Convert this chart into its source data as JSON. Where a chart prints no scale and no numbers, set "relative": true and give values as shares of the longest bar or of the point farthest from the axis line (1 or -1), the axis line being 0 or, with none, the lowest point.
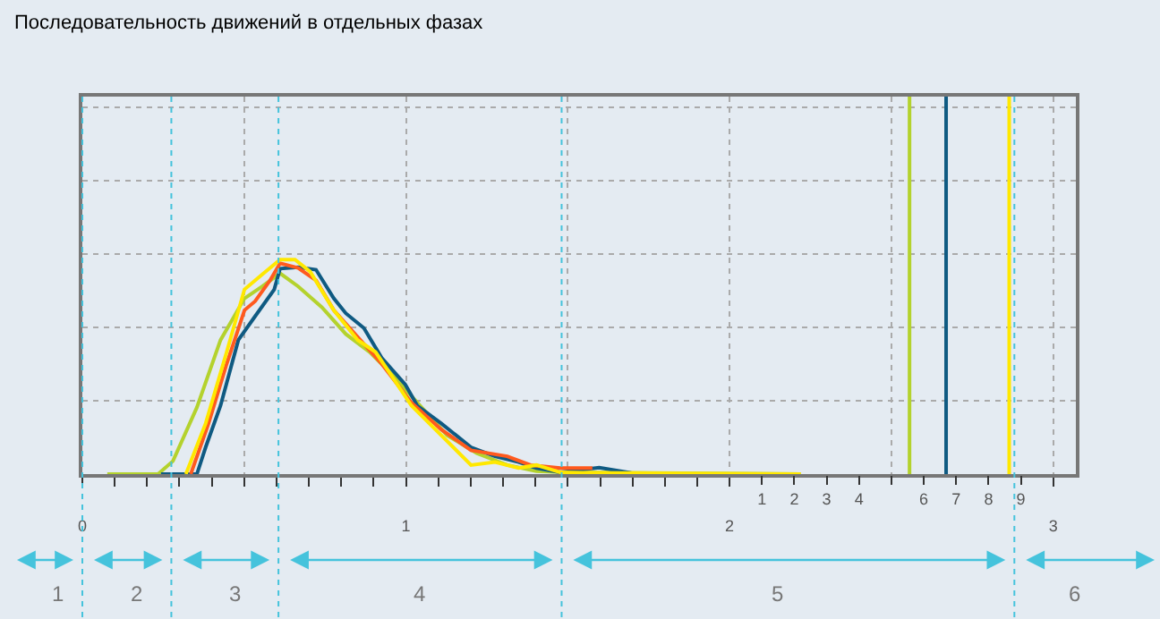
{
  "chart_data": {
    "type": "line",
    "title": "Последовательность движений в отдельных фазах",
    "relative": true,
    "grid": true,
    "marker": "none",
    "line_style": "solid",
    "xlim": [
      0,
      3.07
    ],
    "xticks": [
      0,
      {
        "value": 0.1,
        "label": null
      },
      {
        "value": 0.2,
        "label": null
      },
      {
        "value": 0.3,
        "label": null
      },
      {
        "value": 0.4,
        "label": null
      },
      {
        "value": 0.5,
        "label": null
      },
      {
        "value": 0.6,
        "label": null
      },
      {
        "value": 0.7,
        "label": null
      },
      {
        "value": 0.8,
        "label": null
      },
      {
        "value": 0.9,
        "label": null
      },
      1,
      {
        "value": 1.1,
        "label": null
      },
      {
        "value": 1.2,
        "label": null
      },
      {
        "value": 1.3,
        "label": null
      },
      {
        "value": 1.4,
        "label": null
      },
      {
        "value": 1.5,
        "label": null
      },
      {
        "value": 1.6,
        "label": null
      },
      {
        "value": 1.7,
        "label": null
      },
      {
        "value": 1.8,
        "label": null
      },
      {
        "value": 1.9,
        "label": null
      },
      2,
      3
    ],
    "x2lim": [
      -20,
      10.7
    ],
    "x2ticks": [
      1,
      2,
      3,
      4,
      {
        "value": 5,
        "label": null
      },
      6,
      7,
      8,
      9
    ],
    "series": [
      {
        "color": "#b4d22d",
        "x": [
          0.077,
          0.234,
          0.28,
          0.354,
          0.427,
          0.501,
          0.556,
          0.611,
          0.667,
          0.74,
          0.814,
          0.888,
          0.961,
          1.035,
          1.127,
          1.219,
          1.313,
          1.403,
          1.494,
          2.22
        ],
        "values": [
          0,
          0,
          0.061,
          0.311,
          0.625,
          0.819,
          0.875,
          0.936,
          0.875,
          0.778,
          0.653,
          0.569,
          0.458,
          0.333,
          0.181,
          0.097,
          0.042,
          0.014,
          0.008,
          0
        ]
      },
      {
        "color": "#0f5a82",
        "x": [
          0.243,
          0.354,
          0.381,
          0.427,
          0.482,
          0.534,
          0.593,
          0.611,
          0.667,
          0.722,
          0.777,
          0.814,
          0.87,
          0.925,
          0.998,
          1.035,
          1.109,
          1.201,
          1.275,
          1.348,
          1.403,
          1.477,
          1.597,
          1.696
        ],
        "values": [
          0,
          0,
          0.125,
          0.319,
          0.625,
          0.736,
          0.861,
          0.958,
          0.964,
          0.953,
          0.819,
          0.75,
          0.681,
          0.542,
          0.417,
          0.319,
          0.236,
          0.125,
          0.083,
          0.056,
          0.028,
          0.008,
          0.03,
          0.005
        ]
      },
      {
        "color": "#ff5a1e",
        "x": [
          0.335,
          0.39,
          0.446,
          0.501,
          0.534,
          0.58,
          0.611,
          0.667,
          0.722,
          0.777,
          0.851,
          0.925,
          1.017,
          1.109,
          1.201,
          1.313,
          1.385,
          1.477,
          1.576
        ],
        "values": [
          0,
          0.236,
          0.514,
          0.764,
          0.806,
          0.903,
          0.983,
          0.961,
          0.903,
          0.764,
          0.639,
          0.514,
          0.333,
          0.208,
          0.111,
          0.083,
          0.042,
          0.028,
          0.028
        ]
      },
      {
        "color": "#ffe800",
        "x": [
          0.32,
          0.381,
          0.446,
          0.501,
          0.556,
          0.611,
          0.657,
          0.704,
          0.777,
          0.851,
          0.906,
          0.943,
          1.017,
          1.109,
          1.201,
          1.275,
          1.348,
          1.403,
          1.477,
          1.551,
          2.22
        ],
        "values": [
          0,
          0.236,
          0.569,
          0.861,
          0.931,
          1.0,
          1.0,
          0.944,
          0.764,
          0.625,
          0.569,
          0.486,
          0.319,
          0.181,
          0.042,
          0.056,
          0.028,
          0.042,
          0.008,
          0.006,
          0
        ]
      }
    ],
    "ref_lines": [
      {
        "axis": "x",
        "value": 2.556,
        "color": "#b4d22d",
        "line_style": "solid"
      },
      {
        "axis": "x",
        "value": 2.669,
        "color": "#0f5a82",
        "line_style": "solid"
      },
      {
        "axis": "x",
        "value": 2.864,
        "color": "#ffe800",
        "line_style": "solid"
      },
      {
        "axis": "x",
        "value": 0,
        "color": "#45c3dc",
        "line_style": "dotted"
      },
      {
        "axis": "x",
        "value": 0.275,
        "color": "#45c3dc",
        "line_style": "dotted"
      },
      {
        "axis": "x",
        "value": 0.606,
        "color": "#45c3dc",
        "line_style": "dotted"
      },
      {
        "axis": "x",
        "value": 1.481,
        "color": "#45c3dc",
        "line_style": "dotted"
      },
      {
        "axis": "x",
        "value": 2.88,
        "color": "#45c3dc",
        "line_style": "dotted"
      }
    ],
    "annotations": [
      "1",
      "2",
      "3",
      "4",
      "5",
      "6"
    ]
  }
}
